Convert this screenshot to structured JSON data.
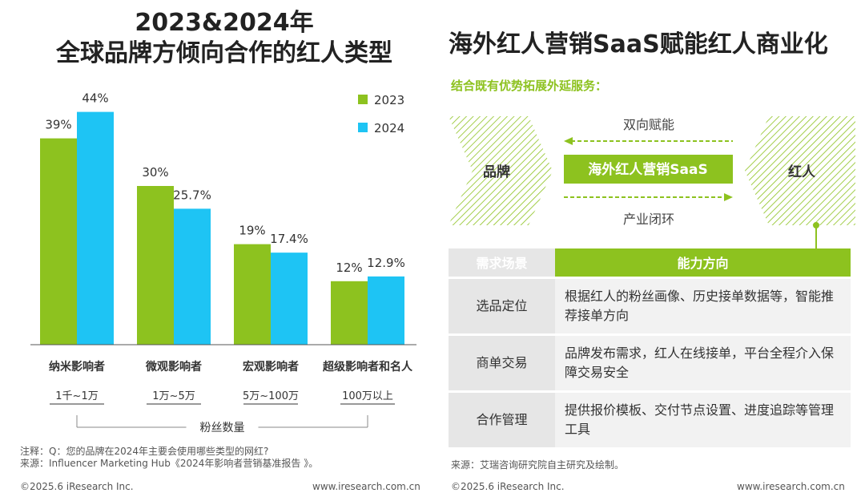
{
  "left_title_line1": "2023&2024年",
  "left_title_line2": "全球品牌方倾向合作的红人类型",
  "chart_data": {
    "type": "bar",
    "categories": [
      "纳米影响者",
      "微观影响者",
      "宏观影响者",
      "超级影响者和名人"
    ],
    "sub_labels": [
      "1千~1万",
      "1万~5万",
      "5万~100万",
      "100万以上"
    ],
    "series": [
      {
        "name": "2023",
        "color": "#8dc21f",
        "values": [
          39,
          30,
          19,
          12
        ],
        "labels": [
          "39%",
          "30%",
          "19%",
          "12%"
        ]
      },
      {
        "name": "2024",
        "color": "#1ec4f4",
        "values": [
          44,
          25.7,
          17.4,
          12.9
        ],
        "labels": [
          "44%",
          "25.7%",
          "17.4%",
          "12.9%"
        ]
      }
    ],
    "xlabel": "粉丝数量",
    "ylabel": "",
    "ylim": [
      0,
      50
    ],
    "legend_position": "top-right",
    "grid": false
  },
  "note_line": "注释：Q：您的品牌在2024年主要会使用哪些类型的网红?",
  "source_left": "来源：Influencer Marketing Hub《2024年影响者营销基准报告 》。",
  "copyright_left": "©2025.6 iResearch Inc.",
  "url_left": "www.iresearch.com.cn",
  "right_title": "海外红人营销SaaS赋能红人商业化",
  "right_subtitle": "结合既有优势拓展外延服务：",
  "diagram": {
    "left_label": "品牌",
    "right_label": "红人",
    "center_label": "海外红人营销SaaS",
    "top_text": "双向赋能",
    "bottom_text": "产业闭环",
    "accent": "#8dc21f"
  },
  "table": {
    "headers": [
      "需求场景",
      "能力方向"
    ],
    "rows": [
      {
        "scene": "选品定位",
        "desc": "根据红人的粉丝画像、历史接单数据等，智能推荐接单方向"
      },
      {
        "scene": "商单交易",
        "desc": "品牌发布需求，红人在线接单，平台全程介入保障交易安全"
      },
      {
        "scene": "合作管理",
        "desc": "提供报价模板、交付节点设置、进度追踪等管理工具"
      }
    ]
  },
  "source_right": "来源：艾瑞咨询研究院自主研究及绘制。",
  "copyright_right": "©2025.6 iResearch Inc.",
  "url_right": "www.iresearch.com.cn"
}
